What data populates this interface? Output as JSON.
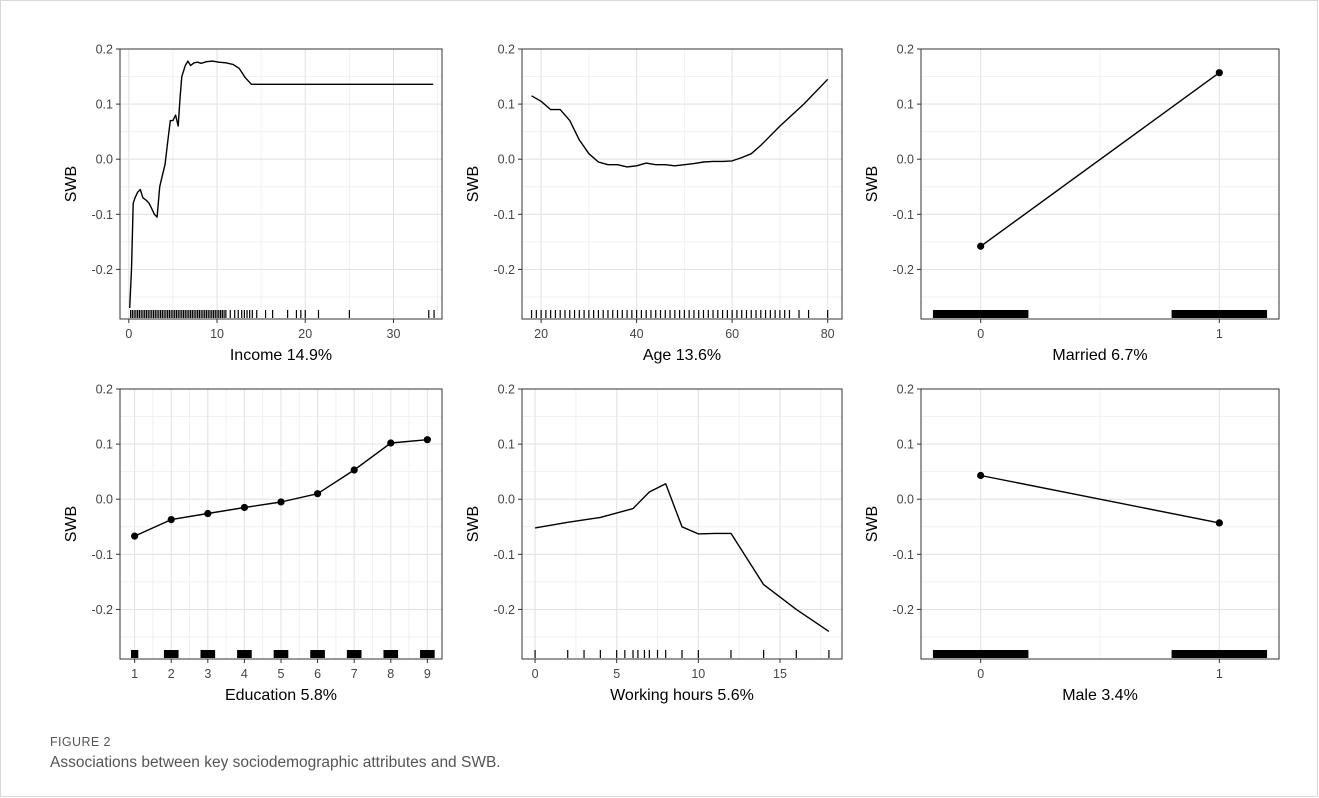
{
  "figure": {
    "label": "FIGURE 2",
    "caption": "Associations between key sociodemographic attributes and SWB."
  },
  "chart_data": [
    {
      "type": "line",
      "xlabel": "Income 14.9%",
      "ylabel": "SWB",
      "xlim": [
        -1,
        35.5
      ],
      "ylim": [
        -0.29,
        0.2
      ],
      "xticks": [
        0,
        10,
        20,
        30
      ],
      "yticks": [
        -0.2,
        -0.1,
        0.0,
        0.1,
        0.2
      ],
      "ytick_labels": [
        "-0.2",
        "-0.1",
        "0.0",
        "0.1",
        "0.2"
      ],
      "grid": true,
      "series": [
        {
          "x": [
            0.1,
            0.3,
            0.5,
            0.7,
            1.0,
            1.3,
            1.6,
            2.0,
            2.3,
            2.6,
            2.9,
            3.2,
            3.5,
            3.8,
            4.1,
            4.4,
            4.7,
            5.0,
            5.3,
            5.6,
            5.8,
            6.0,
            6.4,
            6.7,
            7.0,
            7.4,
            7.8,
            8.2,
            8.8,
            9.5,
            10.2,
            11.0,
            11.8,
            12.5,
            13.2,
            13.9,
            20,
            30,
            34.5
          ],
          "y": [
            -0.27,
            -0.2,
            -0.08,
            -0.07,
            -0.06,
            -0.055,
            -0.07,
            -0.075,
            -0.08,
            -0.09,
            -0.1,
            -0.105,
            -0.05,
            -0.03,
            -0.01,
            0.03,
            0.07,
            0.07,
            0.08,
            0.06,
            0.11,
            0.15,
            0.17,
            0.178,
            0.17,
            0.175,
            0.176,
            0.174,
            0.177,
            0.178,
            0.176,
            0.175,
            0.172,
            0.165,
            0.148,
            0.136,
            0.136,
            0.136,
            0.136
          ]
        }
      ],
      "rug": [
        0.2,
        0.4,
        0.6,
        0.8,
        1.0,
        1.2,
        1.4,
        1.6,
        1.8,
        2.0,
        2.2,
        2.4,
        2.6,
        2.8,
        3.0,
        3.2,
        3.4,
        3.6,
        3.8,
        4.0,
        4.2,
        4.4,
        4.6,
        4.8,
        5.0,
        5.2,
        5.4,
        5.6,
        5.8,
        6.0,
        6.2,
        6.4,
        6.6,
        6.8,
        7.0,
        7.2,
        7.4,
        7.6,
        7.8,
        8.0,
        8.2,
        8.4,
        8.6,
        8.8,
        9.0,
        9.2,
        9.4,
        9.6,
        9.8,
        10.0,
        10.2,
        10.4,
        10.6,
        10.8,
        11.0,
        11.5,
        12.0,
        12.4,
        12.8,
        13.1,
        13.4,
        13.7,
        14.0,
        14.5,
        15.5,
        16.3,
        18.0,
        19.0,
        19.5,
        20.0,
        21.5,
        25.0,
        34.0,
        34.6
      ]
    },
    {
      "type": "line",
      "xlabel": "Age 13.6%",
      "ylabel": "SWB",
      "xlim": [
        16,
        83
      ],
      "ylim": [
        -0.29,
        0.2
      ],
      "xticks": [
        20,
        40,
        60,
        80
      ],
      "yticks": [
        -0.2,
        -0.1,
        0.0,
        0.1,
        0.2
      ],
      "ytick_labels": [
        "-0.2",
        "-0.1",
        "0.0",
        "0.1",
        "0.2"
      ],
      "grid": true,
      "series": [
        {
          "x": [
            18,
            20,
            22,
            24,
            26,
            28,
            30,
            32,
            34,
            36,
            38,
            40,
            42,
            44,
            46,
            48,
            50,
            52,
            54,
            56,
            58,
            60,
            62,
            64,
            66,
            70,
            75,
            80
          ],
          "y": [
            0.115,
            0.105,
            0.09,
            0.09,
            0.07,
            0.035,
            0.01,
            -0.005,
            -0.01,
            -0.01,
            -0.014,
            -0.012,
            -0.007,
            -0.01,
            -0.01,
            -0.012,
            -0.01,
            -0.008,
            -0.005,
            -0.004,
            -0.004,
            -0.003,
            0.003,
            0.01,
            0.025,
            0.06,
            0.1,
            0.145
          ]
        }
      ],
      "rug": [
        18,
        19,
        20,
        21,
        22,
        23,
        24,
        25,
        26,
        27,
        28,
        29,
        30,
        31,
        32,
        33,
        34,
        35,
        36,
        37,
        38,
        39,
        40,
        41,
        42,
        43,
        44,
        45,
        46,
        47,
        48,
        49,
        50,
        51,
        52,
        53,
        54,
        55,
        56,
        57,
        58,
        59,
        60,
        61,
        62,
        63,
        64,
        65,
        66,
        67,
        68,
        69,
        70,
        71,
        72,
        74,
        76,
        80
      ]
    },
    {
      "type": "line",
      "xlabel": "Married 6.7%",
      "ylabel": "SWB",
      "xlim": [
        -0.25,
        1.25
      ],
      "ylim": [
        -0.29,
        0.2
      ],
      "xticks": [
        0,
        1
      ],
      "yticks": [
        -0.2,
        -0.1,
        0.0,
        0.1,
        0.2
      ],
      "ytick_labels": [
        "-0.2",
        "-0.1",
        "0.0",
        "0.1",
        "0.2"
      ],
      "grid": true,
      "series": [
        {
          "x": [
            0,
            1
          ],
          "y": [
            -0.158,
            0.157
          ],
          "markers": true
        }
      ],
      "rug_blocks": [
        [
          -0.2,
          0.2
        ],
        [
          0.8,
          1.2
        ]
      ]
    },
    {
      "type": "line",
      "xlabel": "Education 5.8%",
      "ylabel": "SWB",
      "xlim": [
        0.6,
        9.4
      ],
      "ylim": [
        -0.29,
        0.2
      ],
      "xticks": [
        1,
        2,
        3,
        4,
        5,
        6,
        7,
        8,
        9
      ],
      "yticks": [
        -0.2,
        -0.1,
        0.0,
        0.1,
        0.2
      ],
      "ytick_labels": [
        "-0.2",
        "-0.1",
        "0.0",
        "0.1",
        "0.2"
      ],
      "grid": true,
      "series": [
        {
          "x": [
            1,
            2,
            3,
            4,
            5,
            6,
            7,
            8,
            9
          ],
          "y": [
            -0.067,
            -0.037,
            -0.026,
            -0.015,
            -0.005,
            0.01,
            0.053,
            0.102,
            0.108
          ],
          "markers": true
        }
      ],
      "rug_blocks": [
        [
          0.9,
          1.1
        ],
        [
          1.8,
          2.2
        ],
        [
          2.8,
          3.2
        ],
        [
          3.8,
          4.2
        ],
        [
          4.8,
          5.2
        ],
        [
          5.8,
          6.2
        ],
        [
          6.8,
          7.2
        ],
        [
          7.8,
          8.2
        ],
        [
          8.8,
          9.2
        ]
      ]
    },
    {
      "type": "line",
      "xlabel": "Working hours 5.6%",
      "ylabel": "SWB",
      "xlim": [
        -0.8,
        18.8
      ],
      "ylim": [
        -0.29,
        0.2
      ],
      "xticks": [
        0,
        5,
        10,
        15
      ],
      "yticks": [
        -0.2,
        -0.1,
        0.0,
        0.1,
        0.2
      ],
      "ytick_labels": [
        "-0.2",
        "-0.1",
        "0.0",
        "0.1",
        "0.2"
      ],
      "grid": true,
      "series": [
        {
          "x": [
            0,
            2,
            4,
            6,
            7,
            8,
            9,
            10,
            11,
            12,
            14,
            16,
            18
          ],
          "y": [
            -0.052,
            -0.042,
            -0.033,
            -0.017,
            0.013,
            0.028,
            -0.05,
            -0.063,
            -0.062,
            -0.062,
            -0.155,
            -0.2,
            -0.24
          ]
        }
      ],
      "rug": [
        0,
        2,
        3,
        4,
        5,
        5.5,
        6,
        6.3,
        6.7,
        7,
        7.5,
        8,
        9,
        10,
        12,
        14,
        16,
        18
      ]
    },
    {
      "type": "line",
      "xlabel": "Male 3.4%",
      "ylabel": "SWB",
      "xlim": [
        -0.25,
        1.25
      ],
      "ylim": [
        -0.29,
        0.2
      ],
      "xticks": [
        0,
        1
      ],
      "yticks": [
        -0.2,
        -0.1,
        0.0,
        0.1,
        0.2
      ],
      "ytick_labels": [
        "-0.2",
        "-0.1",
        "0.0",
        "0.1",
        "0.2"
      ],
      "grid": true,
      "series": [
        {
          "x": [
            0,
            1
          ],
          "y": [
            0.043,
            -0.043
          ],
          "markers": true
        }
      ],
      "rug_blocks": [
        [
          -0.2,
          0.2
        ],
        [
          0.8,
          1.2
        ]
      ]
    }
  ]
}
